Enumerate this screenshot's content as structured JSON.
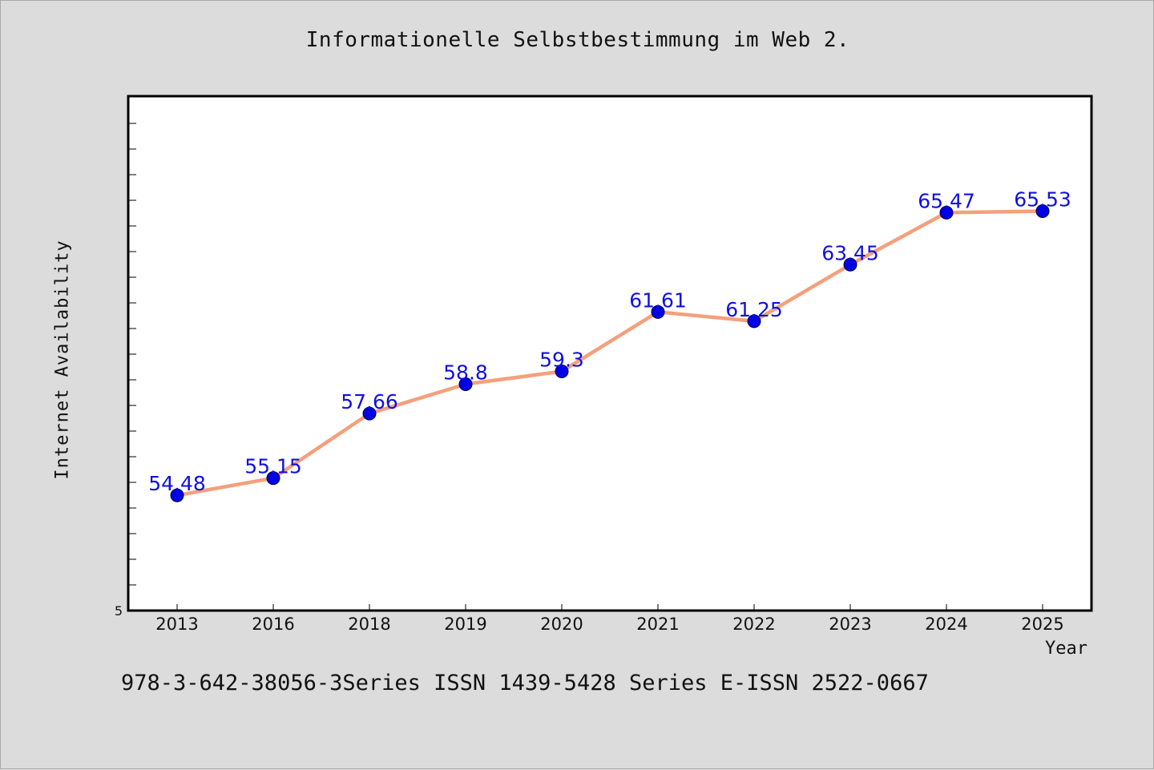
{
  "chart_data": {
    "type": "line",
    "title": "Informationelle Selbstbestimmung im Web 2.",
    "xlabel": "Year",
    "ylabel": "Internet Availability",
    "categories": [
      "2013",
      "2016",
      "2018",
      "2019",
      "2020",
      "2021",
      "2022",
      "2023",
      "2024",
      "2025"
    ],
    "series": [
      {
        "values": [
          54.48,
          55.15,
          57.66,
          58.8,
          59.3,
          61.61,
          61.25,
          63.45,
          65.47,
          65.53
        ],
        "data_labels": [
          "54.48",
          "55.15",
          "57.66",
          "58.8",
          "59.3",
          "61.61",
          "61.25",
          "63.45",
          "65.47",
          "65.53"
        ],
        "line_color": "#f4a07c",
        "marker_color": "#0000e6"
      }
    ],
    "y_tick_labels": [
      "5"
    ],
    "ylim": [
      50,
      70
    ],
    "grid": false
  },
  "footnote": "978-3-642-38056-3Series ISSN 1439-5428 Series E-ISSN 2522-0667"
}
